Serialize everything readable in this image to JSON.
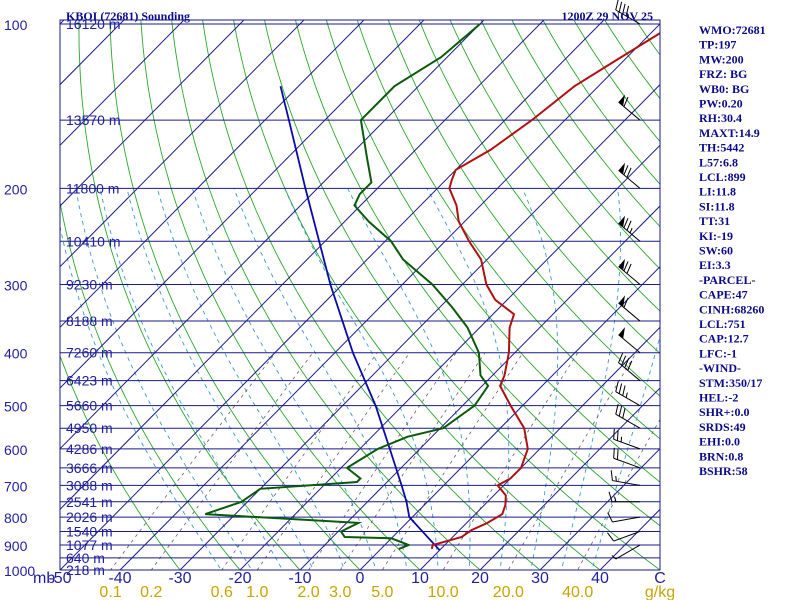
{
  "header": {
    "station": "KBOI (72681) Sounding",
    "time": "1200Z 29 NOV 25"
  },
  "indices": [
    "WMO:72681",
    "TP:197",
    "MW:200",
    "FRZ: BG",
    "WB0: BG",
    "PW:0.20",
    "RH:30.4",
    "MAXT:14.9",
    "TH:5442",
    "L57:6.8",
    "LCL:899",
    "LI:11.8",
    "SI:11.8",
    "TT:31",
    "KI:-19",
    "SW:60",
    "EI:3.3",
    "-PARCEL-",
    "CAPE:47",
    "CINH:68260",
    "LCL:751",
    "CAP:12.7",
    "LFC:-1",
    "-WIND-",
    "STM:350/17",
    "HEL:-2",
    "SHR+:0.0",
    "SRDS:49",
    "EHI:0.0",
    "BRN:0.8",
    "BSHR:58"
  ],
  "colors": {
    "isobar": "#1a1a8c",
    "isotherm": "#1a1a8c",
    "dry_adiabat": "#2aa82a",
    "moist_adiabat": "#3a9ad0",
    "mixing_ratio": "#606060",
    "temperature": "#b01010",
    "dewpoint": "#0a5a0a",
    "parcel": "#0a0aa8",
    "label": "#1f1f9f",
    "mixing_label": "#c8a400"
  },
  "chart_data": {
    "type": "skew-t",
    "pressure_axis": {
      "unit": "mb",
      "ticks": [
        100,
        200,
        300,
        400,
        500,
        600,
        700,
        800,
        900,
        1000
      ],
      "range": [
        1000,
        100
      ],
      "scale": "log"
    },
    "temperature_axis": {
      "unit": "C",
      "ticks": [
        -50,
        -40,
        -30,
        -20,
        -10,
        0,
        10,
        20,
        30,
        40
      ],
      "range": [
        -50,
        50
      ]
    },
    "height_labels": [
      {
        "p": 100,
        "label": "16120 m"
      },
      {
        "p": 150,
        "label": "13570 m"
      },
      {
        "p": 200,
        "label": "11800 m"
      },
      {
        "p": 250,
        "label": "10410 m"
      },
      {
        "p": 300,
        "label": "9230 m"
      },
      {
        "p": 350,
        "label": "8188 m"
      },
      {
        "p": 400,
        "label": "7260 m"
      },
      {
        "p": 450,
        "label": "6423 m"
      },
      {
        "p": 500,
        "label": "5660 m"
      },
      {
        "p": 550,
        "label": "4950 m"
      },
      {
        "p": 600,
        "label": "4286 m"
      },
      {
        "p": 650,
        "label": "3666 m"
      },
      {
        "p": 700,
        "label": "3088 m"
      },
      {
        "p": 750,
        "label": "2541 m"
      },
      {
        "p": 800,
        "label": "2026 m"
      },
      {
        "p": 850,
        "label": "1540 m"
      },
      {
        "p": 900,
        "label": "1077 m"
      },
      {
        "p": 950,
        "label": "640 m"
      },
      {
        "p": 1000,
        "label": "218 m"
      }
    ],
    "mixing_ratio_labels": [
      "0.1",
      "0.2",
      "0.6",
      "1.0",
      "2.0",
      "3.0",
      "5.0",
      "10.0",
      "20.0",
      "40.0"
    ],
    "mixing_ratio_unit": "g/kg",
    "mixing_ratio_values": [
      0.1,
      0.2,
      0.6,
      1.0,
      2.0,
      3.0,
      5.0,
      10.0,
      20.0,
      40.0
    ],
    "temperature_profile": [
      {
        "p": 915,
        "t": 8.5
      },
      {
        "p": 900,
        "t": 8.0
      },
      {
        "p": 870,
        "t": 11.5
      },
      {
        "p": 845,
        "t": 12.0
      },
      {
        "p": 820,
        "t": 13.5
      },
      {
        "p": 790,
        "t": 14.5
      },
      {
        "p": 760,
        "t": 13.5
      },
      {
        "p": 730,
        "t": 12.0
      },
      {
        "p": 700,
        "t": 9.0
      },
      {
        "p": 680,
        "t": 10.0
      },
      {
        "p": 650,
        "t": 10.0
      },
      {
        "p": 600,
        "t": 8.0
      },
      {
        "p": 550,
        "t": 4.0
      },
      {
        "p": 500,
        "t": -2.0
      },
      {
        "p": 460,
        "t": -7.0
      },
      {
        "p": 440,
        "t": -8.0
      },
      {
        "p": 400,
        "t": -11.0
      },
      {
        "p": 360,
        "t": -15.0
      },
      {
        "p": 340,
        "t": -16.5
      },
      {
        "p": 320,
        "t": -22.0
      },
      {
        "p": 300,
        "t": -26.0
      },
      {
        "p": 270,
        "t": -31.0
      },
      {
        "p": 250,
        "t": -36.0
      },
      {
        "p": 230,
        "t": -41.0
      },
      {
        "p": 215,
        "t": -44.0
      },
      {
        "p": 200,
        "t": -48.0
      },
      {
        "p": 193,
        "t": -49.0
      },
      {
        "p": 185,
        "t": -50.0
      },
      {
        "p": 170,
        "t": -47.5
      },
      {
        "p": 150,
        "t": -45.5
      },
      {
        "p": 130,
        "t": -44.0
      },
      {
        "p": 115,
        "t": -41.0
      },
      {
        "p": 100,
        "t": -37.5
      }
    ],
    "dewpoint_profile": [
      {
        "p": 915,
        "td": 3.0
      },
      {
        "p": 900,
        "td": 4.0
      },
      {
        "p": 875,
        "td": 0.0
      },
      {
        "p": 870,
        "td": -8.0
      },
      {
        "p": 850,
        "td": -9.5
      },
      {
        "p": 820,
        "td": -8.0
      },
      {
        "p": 790,
        "td": -35.0
      },
      {
        "p": 750,
        "td": -31.0
      },
      {
        "p": 710,
        "td": -30.0
      },
      {
        "p": 690,
        "td": -15.0
      },
      {
        "p": 680,
        "td": -15.0
      },
      {
        "p": 650,
        "td": -19.0
      },
      {
        "p": 600,
        "td": -17.0
      },
      {
        "p": 570,
        "td": -14.0
      },
      {
        "p": 550,
        "td": -9.5
      },
      {
        "p": 500,
        "td": -8.0
      },
      {
        "p": 460,
        "td": -9.0
      },
      {
        "p": 440,
        "td": -12.0
      },
      {
        "p": 400,
        "td": -16.0
      },
      {
        "p": 360,
        "td": -22.0
      },
      {
        "p": 330,
        "td": -28.0
      },
      {
        "p": 300,
        "td": -35.0
      },
      {
        "p": 270,
        "td": -44.0
      },
      {
        "p": 250,
        "td": -49.0
      },
      {
        "p": 230,
        "td": -56.0
      },
      {
        "p": 215,
        "td": -61.0
      },
      {
        "p": 205,
        "td": -62.0
      },
      {
        "p": 195,
        "td": -62.0
      },
      {
        "p": 175,
        "td": -67.0
      },
      {
        "p": 150,
        "td": -74.0
      },
      {
        "p": 130,
        "td": -74.0
      },
      {
        "p": 115,
        "td": -71.0
      },
      {
        "p": 100,
        "td": -70.0
      }
    ],
    "parcel_profile": [
      {
        "p": 920,
        "t": 10.0
      },
      {
        "p": 800,
        "t": -0.5
      },
      {
        "p": 750,
        "t": -3.5
      },
      {
        "p": 700,
        "t": -7.0
      },
      {
        "p": 600,
        "t": -15.0
      },
      {
        "p": 500,
        "t": -24.5
      },
      {
        "p": 400,
        "t": -37.0
      },
      {
        "p": 300,
        "t": -52.0
      },
      {
        "p": 200,
        "t": -72.0
      },
      {
        "p": 150,
        "t": -86.0
      },
      {
        "p": 130,
        "t": -93.0
      }
    ],
    "wind_barbs": [
      {
        "p": 900,
        "dir": 240,
        "spd": 5
      },
      {
        "p": 850,
        "dir": 250,
        "spd": 10
      },
      {
        "p": 800,
        "dir": 260,
        "spd": 10
      },
      {
        "p": 750,
        "dir": 270,
        "spd": 15
      },
      {
        "p": 700,
        "dir": 280,
        "spd": 15
      },
      {
        "p": 650,
        "dir": 290,
        "spd": 20
      },
      {
        "p": 600,
        "dir": 290,
        "spd": 25
      },
      {
        "p": 550,
        "dir": 300,
        "spd": 30
      },
      {
        "p": 500,
        "dir": 300,
        "spd": 35
      },
      {
        "p": 450,
        "dir": 310,
        "spd": 40
      },
      {
        "p": 400,
        "dir": 310,
        "spd": 50
      },
      {
        "p": 350,
        "dir": 310,
        "spd": 60
      },
      {
        "p": 300,
        "dir": 310,
        "spd": 70
      },
      {
        "p": 250,
        "dir": 310,
        "spd": 75
      },
      {
        "p": 200,
        "dir": 310,
        "spd": 70
      },
      {
        "p": 150,
        "dir": 310,
        "spd": 60
      },
      {
        "p": 100,
        "dir": 300,
        "spd": 40
      }
    ]
  }
}
